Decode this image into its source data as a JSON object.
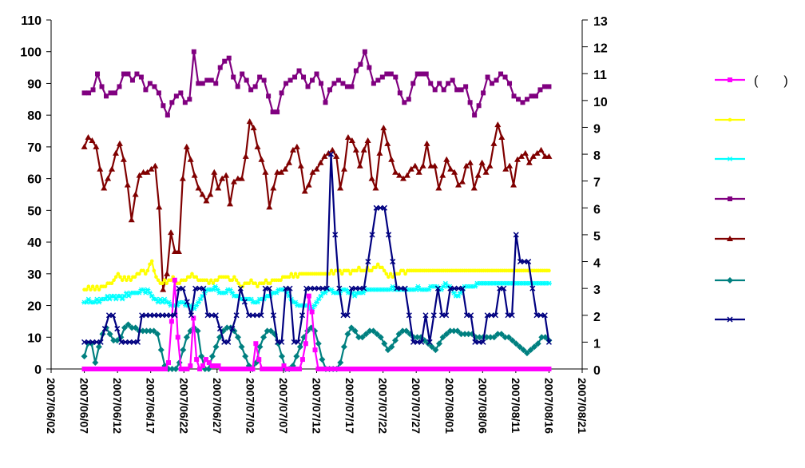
{
  "chart_data": {
    "type": "line",
    "title": "",
    "y_left": {
      "lim": [
        0,
        110
      ],
      "ticks": [
        0,
        10,
        20,
        30,
        40,
        50,
        60,
        70,
        80,
        90,
        100,
        110
      ]
    },
    "y_right": {
      "lim": [
        0,
        13
      ],
      "ticks": [
        0,
        1,
        2,
        3,
        4,
        5,
        6,
        7,
        8,
        9,
        10,
        11,
        12,
        13
      ]
    },
    "x": {
      "start": "2007/06/02",
      "end": "2007/08/21",
      "tick_labels": [
        "2007/06/02",
        "2007/06/07",
        "2007/06/12",
        "2007/06/17",
        "2007/06/22",
        "2007/06/27",
        "2007/07/02",
        "2007/07/07",
        "2007/07/12",
        "2007/07/17",
        "2007/07/22",
        "2007/07/27",
        "2007/08/01",
        "2007/08/06",
        "2007/08/11",
        "2007/08/16",
        "2007/08/21"
      ],
      "series_start": "2007/06/07"
    },
    "legend": {
      "position": "right"
    },
    "grid": false,
    "series": [
      {
        "label": "(　　)",
        "axis": "left",
        "color": "#ff00ff",
        "marker": "square",
        "values": [
          0,
          0,
          0,
          0,
          0,
          0,
          0,
          0,
          0,
          0,
          0,
          0,
          0,
          0,
          0,
          0,
          0,
          0,
          0,
          0,
          0,
          0,
          0,
          0,
          0,
          0,
          0,
          2,
          15,
          28,
          10,
          0,
          0,
          0,
          1,
          16,
          3,
          0,
          1,
          3,
          2,
          1,
          1,
          1,
          0,
          0,
          0,
          0,
          0,
          0,
          0,
          0,
          0,
          0,
          0,
          8,
          3,
          0,
          0,
          0,
          0,
          0,
          0,
          0,
          1,
          0,
          0,
          0,
          0,
          0,
          3,
          8,
          23,
          18,
          6,
          0,
          0,
          0,
          0,
          0,
          0,
          0,
          0,
          0,
          0,
          0,
          0,
          0,
          0,
          0,
          0,
          0,
          0,
          0,
          0,
          0,
          0,
          0,
          0,
          0,
          0,
          0,
          0,
          0,
          0,
          0,
          0,
          0,
          0,
          0,
          0,
          0,
          0,
          0,
          0,
          0,
          0,
          0,
          0,
          0,
          0,
          0,
          0,
          0,
          0,
          0,
          0,
          0,
          0,
          0,
          0,
          0,
          0,
          0,
          0,
          0,
          0,
          0,
          0,
          0,
          0,
          0,
          0,
          0,
          0,
          0,
          0,
          0,
          0,
          0
        ]
      },
      {
        "label": "",
        "axis": "left",
        "color": "#ffff00",
        "marker": "circle",
        "values": [
          25,
          25,
          26,
          25,
          26,
          25,
          26,
          25,
          26,
          26,
          26,
          27,
          27,
          27,
          28,
          29,
          30,
          29,
          28,
          29,
          28,
          29,
          28,
          29,
          29,
          30,
          30,
          31,
          31,
          30,
          31,
          33,
          34,
          31,
          29,
          28,
          27,
          27,
          28,
          27,
          28,
          28,
          29,
          28,
          27,
          27,
          28,
          28,
          28,
          29,
          29,
          30,
          29,
          29,
          28,
          28,
          28,
          28,
          28,
          27,
          28,
          27,
          28,
          28,
          29,
          29,
          29,
          29,
          29,
          28,
          28,
          29,
          28,
          27,
          26,
          26,
          27,
          27,
          27,
          28,
          27,
          27,
          26,
          27,
          27,
          27,
          28,
          27,
          27,
          28,
          28,
          28,
          28,
          28,
          29,
          29,
          29,
          29,
          30,
          29,
          30,
          29,
          30,
          30,
          30,
          30,
          30,
          30,
          30,
          30,
          30,
          30,
          30,
          30,
          30,
          30,
          30,
          31,
          30,
          31,
          31,
          31,
          30,
          31,
          31,
          31,
          30,
          31,
          31,
          31,
          32,
          31,
          31,
          31,
          32,
          31,
          31,
          32,
          32,
          33,
          32,
          32,
          31,
          30,
          29,
          30,
          29,
          30,
          30,
          30,
          31,
          31,
          30,
          31,
          31,
          31,
          31,
          31,
          31,
          31,
          31,
          31,
          31,
          31,
          31,
          31,
          31,
          31,
          31,
          31,
          31,
          31,
          31,
          31,
          31,
          31,
          31,
          31,
          31,
          31,
          31,
          31,
          31,
          31,
          31,
          31,
          31,
          31,
          31,
          31,
          31,
          31,
          31,
          31,
          31,
          31,
          31,
          31,
          31,
          31,
          31,
          31,
          31,
          31,
          31,
          31,
          31,
          31,
          31,
          31,
          31,
          31,
          31,
          31,
          31,
          31,
          31,
          31,
          31,
          31,
          31
        ]
      },
      {
        "label": "",
        "axis": "left",
        "color": "#00ffff",
        "marker": "asterisk",
        "values": [
          21,
          21,
          22,
          21,
          21,
          21,
          22,
          21,
          22,
          22,
          22,
          23,
          22,
          23,
          23,
          22,
          23,
          23,
          22,
          23,
          24,
          23,
          24,
          24,
          24,
          24,
          24,
          25,
          25,
          24,
          25,
          24,
          23,
          22,
          22,
          21,
          22,
          21,
          22,
          21,
          21,
          20,
          20,
          20,
          20,
          21,
          21,
          21,
          20,
          20,
          20,
          19,
          19,
          20,
          21,
          22,
          23,
          24,
          25,
          25,
          25,
          25,
          26,
          25,
          24,
          24,
          24,
          24,
          25,
          25,
          24,
          23,
          23,
          23,
          22,
          22,
          22,
          22,
          22,
          22,
          21,
          21,
          21,
          22,
          22,
          22,
          23,
          23,
          23,
          24,
          24,
          24,
          25,
          25,
          25,
          25,
          24,
          23,
          22,
          21,
          21,
          20,
          20,
          20,
          20,
          20,
          20,
          19,
          19,
          20,
          21,
          22,
          23,
          24,
          24,
          25,
          25,
          25,
          24,
          24,
          24,
          24,
          25,
          25,
          25,
          24,
          24,
          24,
          23,
          24,
          24,
          24,
          24,
          25,
          25,
          25,
          25,
          25,
          25,
          25,
          25,
          25,
          25,
          25,
          25,
          25,
          26,
          25,
          25,
          25,
          25,
          25,
          25,
          25,
          25,
          25,
          25,
          25,
          26,
          25,
          25,
          25,
          25,
          25,
          26,
          26,
          26,
          26,
          25,
          25,
          26,
          27,
          26,
          26,
          25,
          24,
          23,
          23,
          24,
          25,
          26,
          26,
          26,
          26,
          26,
          26,
          27,
          27,
          27,
          27,
          27,
          27,
          27,
          27,
          27,
          27,
          27,
          27,
          27,
          27,
          27,
          27,
          27,
          27,
          27,
          27,
          27,
          27,
          27,
          27,
          27,
          27,
          27,
          27,
          27,
          27,
          27,
          27,
          27,
          27,
          27
        ]
      },
      {
        "label": "",
        "axis": "left",
        "color": "#800080",
        "marker": "square",
        "values": [
          87,
          87,
          88,
          93,
          89,
          86,
          87,
          87,
          89,
          93,
          93,
          91,
          93,
          92,
          88,
          90,
          89,
          87,
          83,
          80,
          84,
          86,
          87,
          84,
          85,
          100,
          90,
          90,
          91,
          91,
          90,
          95,
          97,
          98,
          92,
          89,
          93,
          91,
          88,
          89,
          92,
          91,
          86,
          81,
          81,
          87,
          90,
          91,
          92,
          94,
          92,
          89,
          91,
          93,
          90,
          84,
          88,
          90,
          91,
          90,
          89,
          89,
          94,
          96,
          100,
          95,
          90,
          91,
          92,
          93,
          93,
          92,
          87,
          84,
          85,
          90,
          93,
          93,
          93,
          90,
          88,
          90,
          88,
          90,
          91,
          88,
          88,
          89,
          84,
          80,
          83,
          87,
          92,
          90,
          91,
          93,
          92,
          90,
          86,
          85,
          84,
          85,
          86,
          86,
          88,
          89,
          89
        ]
      },
      {
        "label": "",
        "axis": "left",
        "color": "#800000",
        "marker": "triangle",
        "values": [
          70,
          73,
          72,
          70,
          63,
          57,
          60,
          63,
          68,
          71,
          66,
          58,
          47,
          55,
          61,
          62,
          62,
          63,
          64,
          51,
          25,
          30,
          43,
          37,
          37,
          60,
          70,
          66,
          61,
          57,
          55,
          53,
          55,
          62,
          57,
          60,
          61,
          52,
          59,
          60,
          60,
          67,
          78,
          76,
          70,
          66,
          62,
          51,
          57,
          62,
          62,
          63,
          65,
          69,
          70,
          64,
          56,
          58,
          62,
          63,
          65,
          67,
          68,
          69,
          67,
          57,
          63,
          73,
          72,
          69,
          64,
          69,
          72,
          60,
          57,
          68,
          76,
          71,
          66,
          62,
          61,
          60,
          61,
          63,
          64,
          62,
          64,
          71,
          64,
          64,
          57,
          61,
          66,
          63,
          62,
          58,
          59,
          64,
          65,
          57,
          61,
          65,
          62,
          64,
          71,
          77,
          73,
          63,
          64,
          58,
          66,
          67,
          68,
          65,
          67,
          68,
          69,
          67,
          67
        ]
      },
      {
        "label": "",
        "axis": "left",
        "color": "#008080",
        "marker": "diamond",
        "values": [
          4,
          8,
          8,
          2,
          7,
          11,
          13,
          11,
          9,
          9,
          10,
          13,
          14,
          13,
          13,
          12,
          12,
          12,
          12,
          12,
          11,
          6,
          1,
          0,
          0,
          0,
          2,
          6,
          10,
          12,
          13,
          12,
          4,
          0,
          0,
          4,
          7,
          10,
          12,
          13,
          13,
          12,
          10,
          7,
          4,
          1,
          0,
          2,
          7,
          10,
          12,
          12,
          11,
          8,
          4,
          0,
          0,
          1,
          4,
          7,
          10,
          12,
          13,
          12,
          8,
          3,
          0,
          0,
          0,
          0,
          2,
          7,
          11,
          13,
          12,
          10,
          10,
          11,
          12,
          12,
          11,
          10,
          8,
          6,
          7,
          9,
          11,
          12,
          12,
          11,
          10,
          10,
          10,
          9,
          8,
          7,
          6,
          8,
          10,
          11,
          12,
          12,
          12,
          11,
          11,
          11,
          11,
          10,
          10,
          10,
          10,
          10,
          10,
          11,
          11,
          10,
          10,
          9,
          8,
          7,
          6,
          5,
          6,
          7,
          8,
          10,
          10,
          9
        ]
      },
      {
        "label": "",
        "axis": "right",
        "color": "#000080",
        "marker": "x",
        "values": [
          1,
          1,
          1,
          1,
          1,
          1.5,
          2,
          2,
          1.5,
          1,
          1,
          1,
          1,
          1,
          2,
          2,
          2,
          2,
          2,
          2,
          2,
          2,
          2,
          3,
          3,
          2.5,
          2,
          3,
          3,
          3,
          2,
          2,
          2,
          1.5,
          1,
          1,
          1.5,
          2,
          3,
          2.5,
          2,
          2,
          2,
          2,
          3,
          3,
          2,
          1,
          1,
          3,
          3,
          1,
          1,
          2,
          3,
          3,
          3,
          3,
          3,
          3,
          8,
          5,
          3,
          2,
          2,
          3,
          3,
          3,
          3,
          4,
          5,
          6,
          6,
          6,
          5,
          4,
          3,
          3,
          3,
          2,
          1,
          1,
          1,
          2,
          1,
          2,
          3,
          2,
          2,
          3,
          3,
          3,
          3,
          2,
          2,
          1,
          1,
          1,
          2,
          2,
          2,
          3,
          3,
          2,
          2,
          5,
          4,
          4,
          4,
          3,
          2,
          2,
          2,
          1
        ]
      }
    ]
  }
}
